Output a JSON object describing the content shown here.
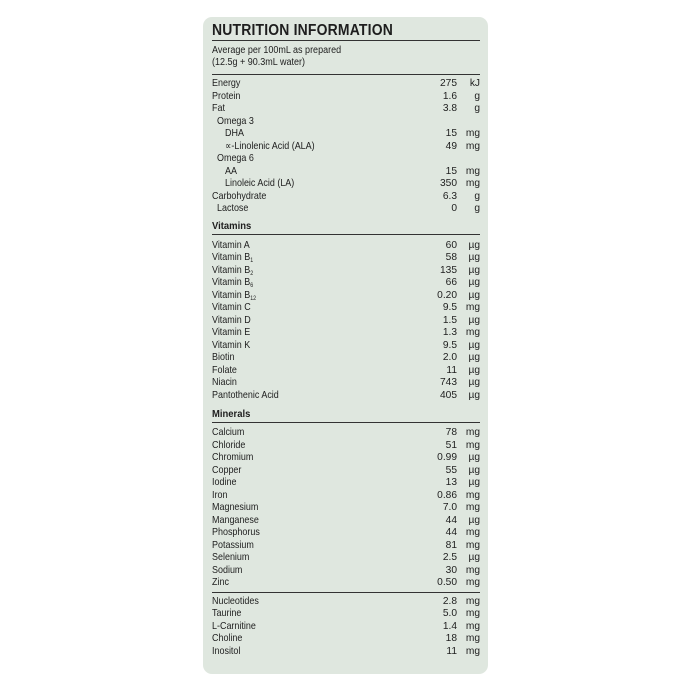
{
  "title": "NUTRITION INFORMATION",
  "serving": [
    "Average per 100mL as prepared",
    "(12.5g + 90.3mL water)"
  ],
  "main": [
    {
      "name": "Energy",
      "value": "275",
      "unit": "kJ",
      "level": 0
    },
    {
      "name": "Protein",
      "value": "1.6",
      "unit": "g",
      "level": 0
    },
    {
      "name": "Fat",
      "value": "3.8",
      "unit": "g",
      "level": 0
    },
    {
      "name": "Omega 3",
      "value": "",
      "unit": "",
      "level": 1
    },
    {
      "name": "DHA",
      "value": "15",
      "unit": "mg",
      "level": 2
    },
    {
      "name": "∝-Linolenic Acid (ALA)",
      "value": "49",
      "unit": "mg",
      "level": 2
    },
    {
      "name": "Omega 6",
      "value": "",
      "unit": "",
      "level": 1
    },
    {
      "name": "AA",
      "value": "15",
      "unit": "mg",
      "level": 2
    },
    {
      "name": "Linoleic Acid (LA)",
      "value": "350",
      "unit": "mg",
      "level": 2
    },
    {
      "name": "Carbohydrate",
      "value": "6.3",
      "unit": "g",
      "level": 0
    },
    {
      "name": "Lactose",
      "value": "0",
      "unit": "g",
      "level": 1
    }
  ],
  "vitamins_label": "Vitamins",
  "vitamins": [
    {
      "name": "Vitamin A",
      "value": "60",
      "unit": "µg"
    },
    {
      "name": "Vitamin B",
      "sub": "1",
      "value": "58",
      "unit": "µg"
    },
    {
      "name": "Vitamin B",
      "sub": "2",
      "value": "135",
      "unit": "µg"
    },
    {
      "name": "Vitamin B",
      "sub": "6",
      "value": "66",
      "unit": "µg"
    },
    {
      "name": "Vitamin B",
      "sub": "12",
      "value": "0.20",
      "unit": "µg"
    },
    {
      "name": "Vitamin C",
      "value": "9.5",
      "unit": "mg"
    },
    {
      "name": "Vitamin D",
      "value": "1.5",
      "unit": "µg"
    },
    {
      "name": "Vitamin E",
      "value": "1.3",
      "unit": "mg"
    },
    {
      "name": "Vitamin K",
      "value": "9.5",
      "unit": "µg"
    },
    {
      "name": "Biotin",
      "value": "2.0",
      "unit": "µg"
    },
    {
      "name": "Folate",
      "value": "11",
      "unit": "µg"
    },
    {
      "name": "Niacin",
      "value": "743",
      "unit": "µg"
    },
    {
      "name": "Pantothenic Acid",
      "value": "405",
      "unit": "µg"
    }
  ],
  "minerals_label": "Minerals",
  "minerals": [
    {
      "name": "Calcium",
      "value": "78",
      "unit": "mg"
    },
    {
      "name": "Chloride",
      "value": "51",
      "unit": "mg"
    },
    {
      "name": "Chromium",
      "value": "0.99",
      "unit": "µg"
    },
    {
      "name": "Copper",
      "value": "55",
      "unit": "µg"
    },
    {
      "name": "Iodine",
      "value": "13",
      "unit": "µg"
    },
    {
      "name": "Iron",
      "value": "0.86",
      "unit": "mg"
    },
    {
      "name": "Magnesium",
      "value": "7.0",
      "unit": "mg"
    },
    {
      "name": "Manganese",
      "value": "44",
      "unit": "µg"
    },
    {
      "name": "Phosphorus",
      "value": "44",
      "unit": "mg"
    },
    {
      "name": "Potassium",
      "value": "81",
      "unit": "mg"
    },
    {
      "name": "Selenium",
      "value": "2.5",
      "unit": "µg"
    },
    {
      "name": "Sodium",
      "value": "30",
      "unit": "mg"
    },
    {
      "name": "Zinc",
      "value": "0.50",
      "unit": "mg"
    }
  ],
  "other": [
    {
      "name": "Nucleotides",
      "value": "2.8",
      "unit": "mg"
    },
    {
      "name": "Taurine",
      "value": "5.0",
      "unit": "mg"
    },
    {
      "name": "L-Carnitine",
      "value": "1.4",
      "unit": "mg"
    },
    {
      "name": "Choline",
      "value": "18",
      "unit": "mg"
    },
    {
      "name": "Inositol",
      "value": "11",
      "unit": "mg"
    }
  ],
  "colors": {
    "panel": "#dfe7df",
    "text": "#1e1e1e"
  }
}
